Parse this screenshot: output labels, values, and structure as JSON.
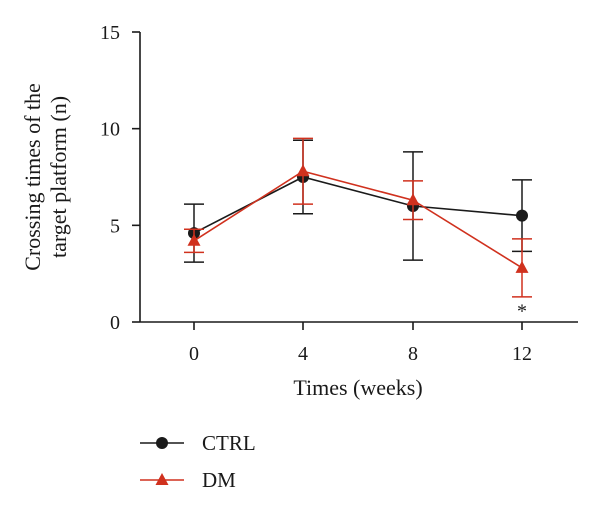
{
  "chart_data": {
    "type": "line",
    "title": "",
    "xlabel": "Times (weeks)",
    "ylabel_lines": [
      "Crossing times of the",
      "target platform (n)"
    ],
    "x": [
      0,
      4,
      8,
      12
    ],
    "x_tick_labels": [
      "0",
      "4",
      "8",
      "12"
    ],
    "ylim": [
      0,
      15
    ],
    "y_ticks": [
      0,
      5,
      10,
      15
    ],
    "y_tick_labels": [
      "0",
      "5",
      "10",
      "15"
    ],
    "grid": false,
    "legend_position": "bottom-left",
    "series": [
      {
        "name": "CTRL",
        "marker": "circle",
        "color": "#1a1a1a",
        "values": [
          4.6,
          7.5,
          6.0,
          5.5
        ],
        "error": [
          1.5,
          1.9,
          2.8,
          1.85
        ]
      },
      {
        "name": "DM",
        "marker": "triangle",
        "color": "#d0311e",
        "values": [
          4.2,
          7.8,
          6.3,
          2.8
        ],
        "error": [
          0.6,
          1.7,
          1.0,
          1.5
        ]
      }
    ],
    "annotations": [
      {
        "text": "*",
        "x": 12,
        "y": 0.6
      }
    ]
  }
}
